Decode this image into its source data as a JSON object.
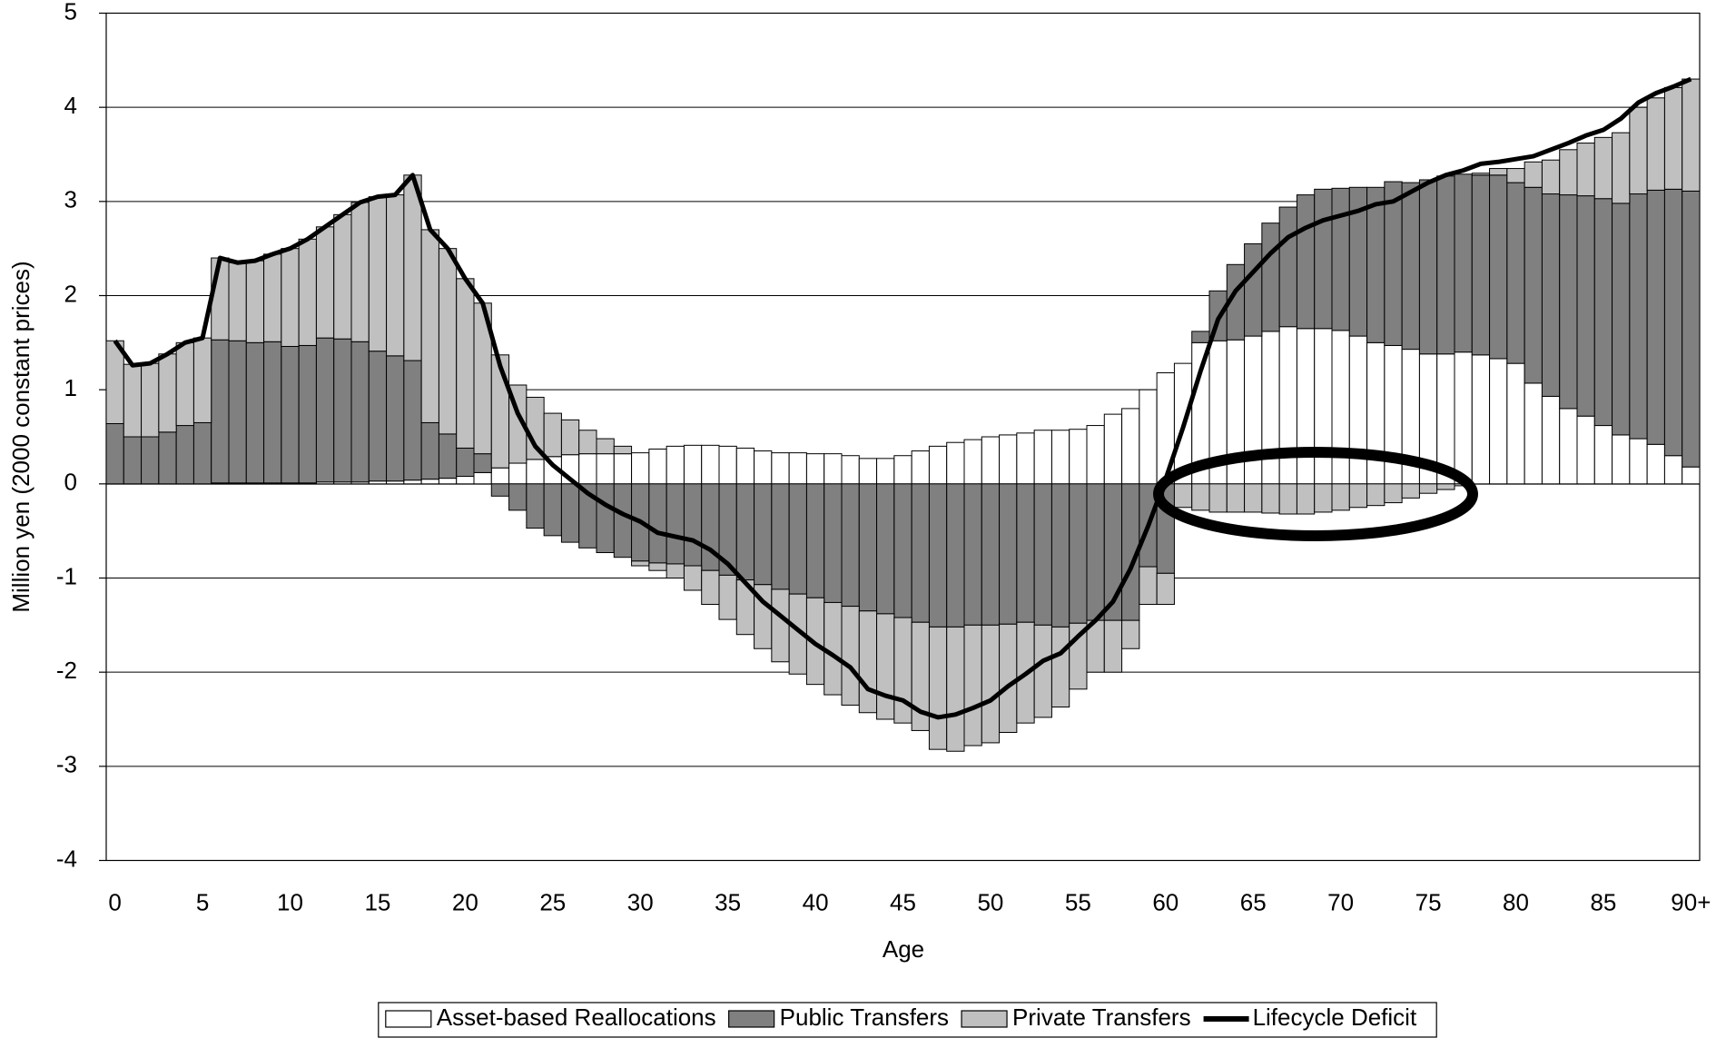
{
  "chart_data": {
    "type": "bar",
    "stacked": true,
    "x_label": "Age",
    "y_label": "Million yen (2000 constant prices)",
    "categories": [
      "0",
      null,
      null,
      null,
      null,
      "5",
      null,
      null,
      null,
      null,
      "10",
      null,
      null,
      null,
      null,
      "15",
      null,
      null,
      null,
      null,
      "20",
      null,
      null,
      null,
      null,
      "25",
      null,
      null,
      null,
      null,
      "30",
      null,
      null,
      null,
      null,
      "35",
      null,
      null,
      null,
      null,
      "40",
      null,
      null,
      null,
      null,
      "45",
      null,
      null,
      null,
      null,
      "50",
      null,
      null,
      null,
      null,
      "55",
      null,
      null,
      null,
      null,
      "60",
      null,
      null,
      null,
      null,
      "65",
      null,
      null,
      null,
      null,
      "70",
      null,
      null,
      null,
      null,
      "75",
      null,
      null,
      null,
      null,
      "80",
      null,
      null,
      null,
      null,
      "85",
      null,
      null,
      null,
      null,
      "90+"
    ],
    "ylim": [
      -4,
      5
    ],
    "yticks": [
      -4,
      -3,
      -2,
      -1,
      0,
      1,
      2,
      3,
      4,
      5
    ],
    "grid": true,
    "legend": "bottom",
    "series": [
      {
        "name": "Asset-based Reallocations",
        "type": "bar",
        "color": "#ffffff",
        "values": [
          0,
          0,
          0,
          0,
          0,
          0,
          0.01,
          0.01,
          0.01,
          0.01,
          0.01,
          0.01,
          0.02,
          0.02,
          0.02,
          0.03,
          0.03,
          0.04,
          0.05,
          0.06,
          0.08,
          0.12,
          0.17,
          0.22,
          0.26,
          0.29,
          0.31,
          0.32,
          0.32,
          0.32,
          0.33,
          0.37,
          0.4,
          0.41,
          0.41,
          0.4,
          0.38,
          0.35,
          0.33,
          0.33,
          0.32,
          0.32,
          0.3,
          0.27,
          0.27,
          0.3,
          0.35,
          0.4,
          0.44,
          0.47,
          0.5,
          0.52,
          0.54,
          0.57,
          0.57,
          0.58,
          0.62,
          0.74,
          0.8,
          1.0,
          1.18,
          1.28,
          1.5,
          1.52,
          1.53,
          1.57,
          1.62,
          1.67,
          1.65,
          1.65,
          1.63,
          1.57,
          1.5,
          1.47,
          1.43,
          1.38,
          1.38,
          1.4,
          1.37,
          1.33,
          1.28,
          1.07,
          0.93,
          0.8,
          0.72,
          0.62,
          0.52,
          0.48,
          0.42,
          0.3,
          0.18
        ]
      },
      {
        "name": "Public Transfers",
        "type": "bar",
        "color": "#808080",
        "values": [
          0.64,
          0.5,
          0.5,
          0.55,
          0.62,
          0.65,
          1.52,
          1.51,
          1.49,
          1.5,
          1.45,
          1.46,
          1.53,
          1.52,
          1.49,
          1.38,
          1.33,
          1.27,
          0.6,
          0.47,
          0.3,
          0.2,
          -0.13,
          -0.28,
          -0.47,
          -0.55,
          -0.62,
          -0.68,
          -0.73,
          -0.78,
          -0.82,
          -0.84,
          -0.85,
          -0.87,
          -0.92,
          -0.97,
          -1.02,
          -1.07,
          -1.12,
          -1.17,
          -1.21,
          -1.26,
          -1.3,
          -1.35,
          -1.38,
          -1.42,
          -1.47,
          -1.52,
          -1.52,
          -1.5,
          -1.5,
          -1.49,
          -1.47,
          -1.5,
          -1.52,
          -1.48,
          -1.45,
          -1.45,
          -1.45,
          -0.88,
          -0.95,
          0.0,
          0.12,
          0.53,
          0.8,
          0.98,
          1.15,
          1.27,
          1.42,
          1.48,
          1.51,
          1.58,
          1.65,
          1.74,
          1.77,
          1.85,
          1.89,
          1.89,
          1.91,
          1.95,
          1.92,
          2.08,
          2.15,
          2.27,
          2.34,
          2.41,
          2.46,
          2.6,
          2.7,
          2.83,
          2.93
        ]
      },
      {
        "name": "Private Transfers",
        "type": "bar",
        "color": "#c0c0c0",
        "values": [
          0.88,
          0.77,
          0.78,
          0.83,
          0.88,
          0.9,
          0.87,
          0.83,
          0.87,
          0.93,
          1.04,
          1.13,
          1.18,
          1.32,
          1.48,
          1.64,
          1.71,
          1.97,
          2.05,
          1.97,
          1.8,
          1.6,
          1.2,
          0.83,
          0.66,
          0.46,
          0.37,
          0.25,
          0.16,
          0.08,
          -0.05,
          -0.08,
          -0.15,
          -0.26,
          -0.36,
          -0.47,
          -0.58,
          -0.68,
          -0.77,
          -0.85,
          -0.92,
          -0.98,
          -1.05,
          -1.08,
          -1.12,
          -1.12,
          -1.15,
          -1.3,
          -1.32,
          -1.28,
          -1.25,
          -1.15,
          -1.07,
          -0.98,
          -0.85,
          -0.7,
          -0.55,
          -0.55,
          -0.3,
          -0.4,
          -0.33,
          -0.25,
          -0.28,
          -0.3,
          -0.3,
          -0.3,
          -0.31,
          -0.32,
          -0.32,
          -0.3,
          -0.28,
          -0.25,
          -0.23,
          -0.2,
          -0.15,
          -0.1,
          -0.06,
          -0.02,
          0.02,
          0.07,
          0.15,
          0.27,
          0.36,
          0.48,
          0.56,
          0.65,
          0.75,
          0.92,
          0.98,
          1.08,
          1.19
        ]
      },
      {
        "name": "Lifecycle Deficit",
        "type": "line",
        "color": "#000000",
        "values": [
          1.52,
          1.26,
          1.28,
          1.38,
          1.5,
          1.55,
          2.4,
          2.35,
          2.37,
          2.44,
          2.5,
          2.6,
          2.73,
          2.86,
          2.99,
          3.05,
          3.07,
          3.28,
          2.7,
          2.5,
          2.18,
          1.92,
          1.25,
          0.75,
          0.4,
          0.2,
          0.05,
          -0.1,
          -0.22,
          -0.32,
          -0.4,
          -0.52,
          -0.56,
          -0.6,
          -0.7,
          -0.85,
          -1.05,
          -1.25,
          -1.4,
          -1.55,
          -1.7,
          -1.82,
          -1.95,
          -2.18,
          -2.25,
          -2.3,
          -2.42,
          -2.48,
          -2.45,
          -2.38,
          -2.3,
          -2.15,
          -2.02,
          -1.88,
          -1.8,
          -1.62,
          -1.45,
          -1.25,
          -0.9,
          -0.45,
          0.05,
          0.6,
          1.2,
          1.75,
          2.05,
          2.25,
          2.45,
          2.62,
          2.72,
          2.8,
          2.85,
          2.9,
          2.97,
          3.0,
          3.1,
          3.2,
          3.28,
          3.33,
          3.4,
          3.42,
          3.45,
          3.48,
          3.55,
          3.62,
          3.7,
          3.76,
          3.88,
          4.05,
          4.15,
          4.22,
          4.3
        ]
      }
    ]
  }
}
